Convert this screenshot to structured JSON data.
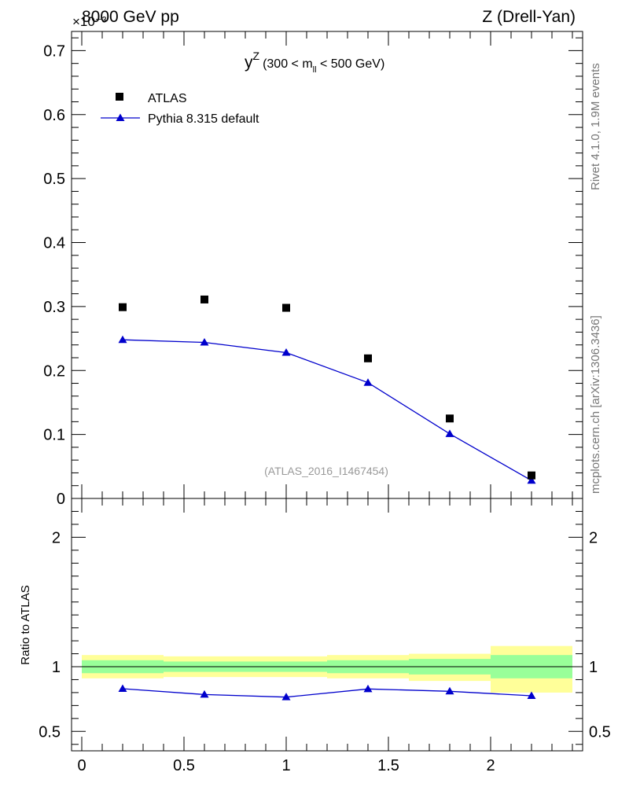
{
  "header": {
    "left": "8000 GeV pp",
    "right": "Z (Drell-Yan)",
    "exponent": "×10⁻³"
  },
  "side": {
    "rivet": "Rivet 4.1.0,  1.9M events",
    "mcplots": "mcplots.cern.ch [arXiv:1306.3436]"
  },
  "chart_data": [
    {
      "type": "scatter",
      "title_main": "y",
      "title_sup": "Z",
      "title_range_pre": "(300 < m",
      "title_range_sub": "ll",
      "title_range_post": " < 500 GeV)",
      "watermark": "(ATLAS_2016_I1467454)",
      "ylabel": "",
      "xlabel": "",
      "xlim": [
        -0.05,
        2.45
      ],
      "ylim": [
        0,
        0.73
      ],
      "scale_note": "values ×10^-3",
      "yticks": [
        0.1,
        0.2,
        0.3,
        0.4,
        0.5,
        0.6,
        0.7
      ],
      "ytick_labels": [
        "0.1",
        "0.2",
        "0.3",
        "0.4",
        "0.5",
        "0.6",
        "0.7"
      ],
      "ytick_zero": "0",
      "legend": [
        {
          "label": "ATLAS",
          "marker": "square",
          "color": "#000000"
        },
        {
          "label": "Pythia 8.315 default",
          "marker": "triangle",
          "color": "#0000cc"
        }
      ],
      "series": [
        {
          "name": "ATLAS",
          "x": [
            0.2,
            0.6,
            1.0,
            1.4,
            1.8,
            2.2
          ],
          "values": [
            0.299,
            0.311,
            0.298,
            0.219,
            0.125,
            0.036
          ]
        },
        {
          "name": "Pythia 8.315 default",
          "x": [
            0.2,
            0.6,
            1.0,
            1.4,
            1.8,
            2.2
          ],
          "values": [
            0.248,
            0.244,
            0.228,
            0.181,
            0.101,
            0.028
          ]
        }
      ]
    },
    {
      "type": "line",
      "ylabel": "Ratio to ATLAS",
      "xlim": [
        -0.05,
        2.45
      ],
      "ylim": [
        0.35,
        2.3
      ],
      "xticks": [
        0,
        0.5,
        1,
        1.5,
        2
      ],
      "xtick_labels": [
        "0",
        "0.5",
        "1",
        "1.5",
        "2"
      ],
      "yticks": [
        0.5,
        1,
        2
      ],
      "ytick_labels": [
        "0.5",
        "1",
        "2"
      ],
      "bins": [
        [
          0.0,
          0.4
        ],
        [
          0.4,
          0.8
        ],
        [
          0.8,
          1.2
        ],
        [
          1.2,
          1.6
        ],
        [
          1.6,
          2.0
        ],
        [
          2.0,
          2.4
        ]
      ],
      "band_yellow": [
        [
          0.91,
          1.09
        ],
        [
          0.92,
          1.08
        ],
        [
          0.92,
          1.08
        ],
        [
          0.91,
          1.09
        ],
        [
          0.89,
          1.1
        ],
        [
          0.8,
          1.16
        ]
      ],
      "band_green": [
        [
          0.95,
          1.05
        ],
        [
          0.96,
          1.04
        ],
        [
          0.96,
          1.04
        ],
        [
          0.95,
          1.05
        ],
        [
          0.94,
          1.06
        ],
        [
          0.91,
          1.09
        ]
      ],
      "band_colors": {
        "yellow": "#ffff99",
        "green": "#99ff99"
      },
      "ratio": {
        "x": [
          0.2,
          0.6,
          1.0,
          1.4,
          1.8,
          2.2
        ],
        "values": [
          0.83,
          0.785,
          0.765,
          0.828,
          0.81,
          0.775
        ]
      }
    }
  ]
}
